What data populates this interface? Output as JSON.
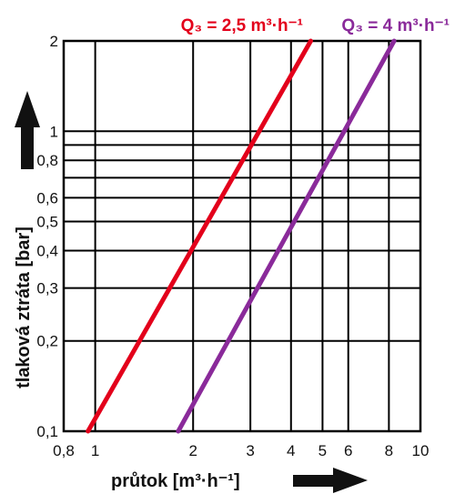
{
  "chart_data": {
    "type": "line",
    "x_scale": "log",
    "y_scale": "log",
    "xlim": [
      0.8,
      10
    ],
    "ylim": [
      0.1,
      2
    ],
    "grid": true,
    "x_ticks": [
      {
        "value": 0.8,
        "label": "0,8"
      },
      {
        "value": 1,
        "label": "1"
      },
      {
        "value": 2,
        "label": "2"
      },
      {
        "value": 3,
        "label": "3"
      },
      {
        "value": 4,
        "label": "4"
      },
      {
        "value": 5,
        "label": "5"
      },
      {
        "value": 6,
        "label": "6"
      },
      {
        "value": 8,
        "label": "8"
      },
      {
        "value": 10,
        "label": "10"
      }
    ],
    "y_ticks": [
      {
        "value": 0.1,
        "label": "0,1"
      },
      {
        "value": 0.2,
        "label": "0,2"
      },
      {
        "value": 0.3,
        "label": "0,3"
      },
      {
        "value": 0.4,
        "label": "0,4"
      },
      {
        "value": 0.5,
        "label": "0,5"
      },
      {
        "value": 0.6,
        "label": "0,6"
      },
      {
        "value": 0.8,
        "label": "0,8"
      },
      {
        "value": 1,
        "label": "1"
      },
      {
        "value": 2,
        "label": "2"
      }
    ],
    "extra_gridlines_y": [
      0.7,
      0.9
    ],
    "xlabel": "průtok [m³·h⁻¹]",
    "ylabel": "tlaková ztráta [bar]",
    "series": [
      {
        "name": "Q₃ = 2,5 m³·h⁻¹",
        "color": "#e3001b",
        "x": [
          0.95,
          4.6
        ],
        "y": [
          0.1,
          2
        ]
      },
      {
        "name": "Q₃ = 4 m³·h⁻¹",
        "color": "#8a2a9a",
        "x": [
          1.8,
          8.3
        ],
        "y": [
          0.1,
          2
        ]
      }
    ]
  }
}
